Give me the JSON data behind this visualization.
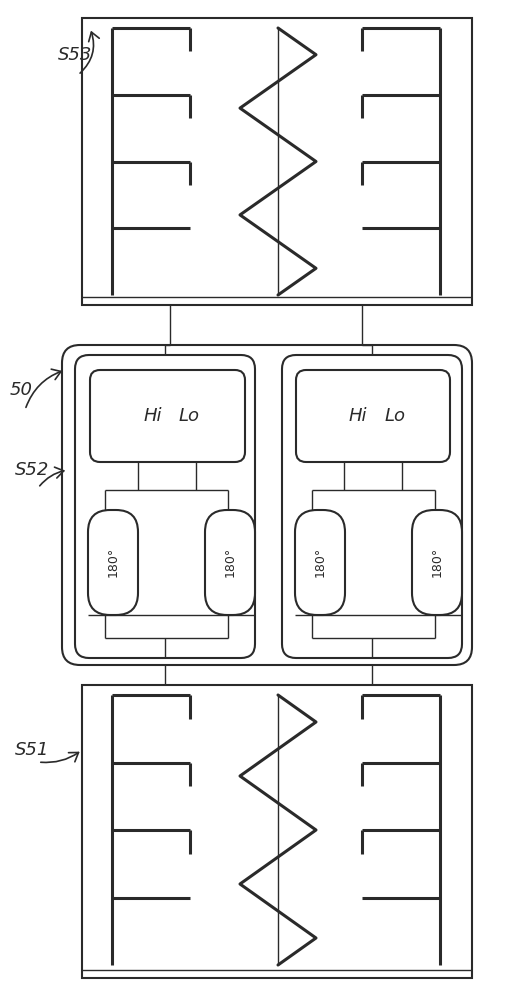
{
  "bg_color": "#ffffff",
  "lc": "#2a2a2a",
  "lw_heavy": 2.2,
  "lw_med": 1.5,
  "lw_thin": 1.0,
  "fig_width": 5.17,
  "fig_height": 10.0,
  "label_50": "50",
  "label_s51": "S51",
  "label_s52": "S52",
  "label_s53": "S53"
}
